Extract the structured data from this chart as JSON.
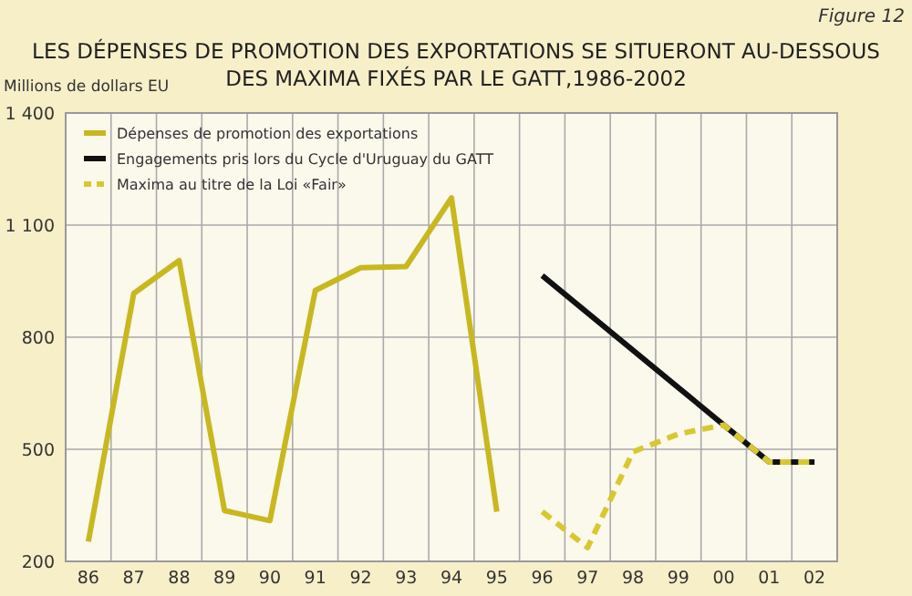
{
  "chart_data": {
    "type": "line",
    "title": "LES DÉPENSES DE PROMOTION DES EXPORTATIONS SE SITUERONT AU-DESSOUS DES MAXIMA FIXÉS PAR LE GATT,1986-2002",
    "ylabel": "Millions de dollars EU",
    "annotations": [
      "Figure 12"
    ],
    "categories": [
      "86",
      "87",
      "88",
      "89",
      "90",
      "91",
      "92",
      "93",
      "94",
      "95",
      "96",
      "97",
      "98",
      "99",
      "00",
      "01",
      "02"
    ],
    "series": [
      {
        "name": "Dépenses de promotion des exportations",
        "color": "#c8b820",
        "line_style": "solid",
        "values": [
          253,
          917,
          1005,
          336,
          309,
          925,
          986,
          989,
          1173,
          333,
          null,
          null,
          null,
          null,
          null,
          null,
          null
        ]
      },
      {
        "name": "Engagements pris lors du Cycle d'Uruguay du GATT",
        "color": "#111111",
        "line_style": "solid",
        "values": [
          null,
          null,
          null,
          null,
          null,
          null,
          null,
          null,
          null,
          null,
          965,
          865,
          765,
          665,
          565,
          466,
          466
        ]
      },
      {
        "name": "Maxima au titre de la Loi «Fair»",
        "color": "#d8c830",
        "line_style": "dashed",
        "values": [
          null,
          null,
          null,
          null,
          null,
          null,
          null,
          null,
          null,
          null,
          333,
          237,
          493,
          541,
          565,
          466,
          466
        ]
      }
    ],
    "ylim": [
      200,
      1400
    ],
    "yticks": [
      200,
      500,
      800,
      {
        "value": 1100,
        "label": "1 100"
      },
      {
        "value": 1400,
        "label": "1 400"
      }
    ],
    "grid": true,
    "legend": "top left",
    "marker": "none"
  }
}
